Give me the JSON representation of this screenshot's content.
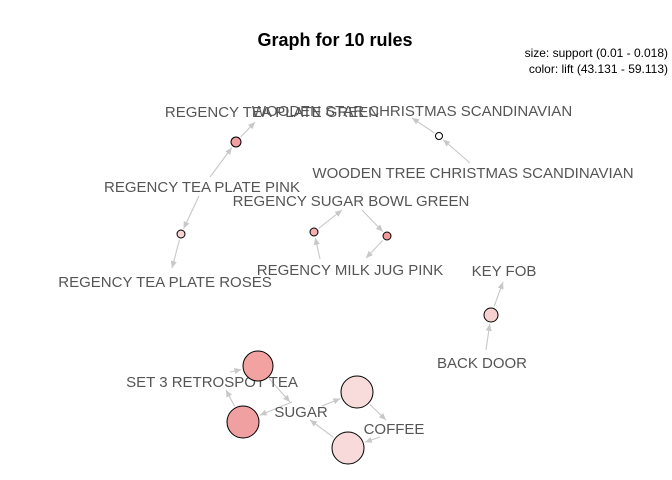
{
  "graph": {
    "title": "Graph for 10 rules",
    "legend": {
      "size": "size: support (0.01 - 0.018)",
      "color": "color: lift (43.131 - 59.113)"
    },
    "edge_color": "#c8c8c8",
    "items": [
      {
        "id": "wtcs",
        "label": "WOODEN STAR CHRISTMAS SCANDINAVIAN"
      },
      {
        "id": "rtpg",
        "label": "REGENCY TEA PLATE GREEN"
      },
      {
        "id": "wtrcs",
        "label": "WOODEN TREE CHRISTMAS SCANDINAVIAN"
      },
      {
        "id": "rtpp",
        "label": "REGENCY TEA PLATE PINK"
      },
      {
        "id": "rsbg",
        "label": "REGENCY SUGAR BOWL GREEN"
      },
      {
        "id": "rtpr",
        "label": "REGENCY TEA PLATE ROSES"
      },
      {
        "id": "rmjp",
        "label": "REGENCY MILK JUG PINK"
      },
      {
        "id": "kf",
        "label": "KEY FOB"
      },
      {
        "id": "bd",
        "label": "BACK DOOR"
      },
      {
        "id": "s3rt",
        "label": "SET 3 RETROSPOT TEA"
      },
      {
        "id": "sugar",
        "label": "SUGAR"
      },
      {
        "id": "coffee",
        "label": "COFFEE"
      }
    ],
    "rules": [
      {
        "id": "r1",
        "from": [
          "wtrcs"
        ],
        "to": [
          "wtcs"
        ],
        "color": "#ffffff"
      },
      {
        "id": "r2",
        "from": [
          "rtpp"
        ],
        "to": [
          "rtpg"
        ],
        "color": "#f0a0a0"
      },
      {
        "id": "r3",
        "from": [
          "rtpp"
        ],
        "to": [
          "rtpr"
        ],
        "color": "#f7d3d3"
      },
      {
        "id": "r4",
        "from": [
          "rmjp"
        ],
        "to": [
          "rsbg"
        ],
        "color": "#f4b0b0"
      },
      {
        "id": "r5",
        "from": [
          "rsbg"
        ],
        "to": [
          "rmjp"
        ],
        "color": "#f19a9a"
      },
      {
        "id": "r6",
        "from": [
          "bd"
        ],
        "to": [
          "kf"
        ],
        "color": "#f7d0d0"
      },
      {
        "id": "r7",
        "from": [
          "s3rt"
        ],
        "to": [
          "sugar"
        ],
        "color": "#f3a2a2"
      },
      {
        "id": "r8",
        "from": [
          "sugar"
        ],
        "to": [
          "s3rt"
        ],
        "color": "#f0a0a0"
      },
      {
        "id": "r9",
        "from": [
          "sugar"
        ],
        "to": [
          "coffee"
        ],
        "color": "#f8dcdc"
      },
      {
        "id": "r10",
        "from": [
          "coffee"
        ],
        "to": [
          "sugar"
        ],
        "color": "#f8dada"
      }
    ]
  }
}
